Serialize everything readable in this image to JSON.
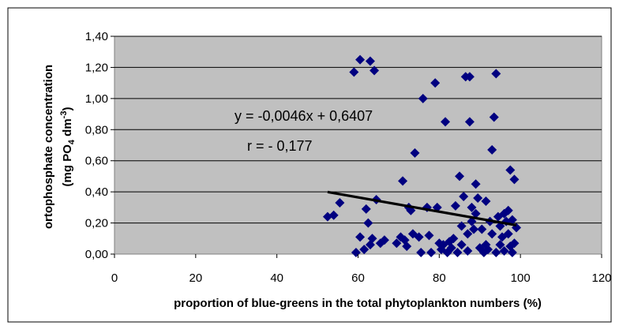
{
  "chart_data": {
    "type": "scatter",
    "xlabel": "proportion of blue-greens in the total phytoplankton numbers (%)",
    "ylabel_line1": "ortophosphate concentration",
    "ylabel_line2": {
      "prefix": "(mg PO",
      "sub": "4",
      "middle": " dm",
      "sup": "-3",
      "suffix": ")"
    },
    "xlim": [
      0,
      120
    ],
    "ylim": [
      0,
      1.4
    ],
    "x_ticks": [
      0,
      20,
      40,
      60,
      80,
      100,
      120
    ],
    "x_tick_labels": [
      "0",
      "20",
      "40",
      "60",
      "80",
      "100",
      "120"
    ],
    "y_ticks": [
      0,
      0.2,
      0.4,
      0.6,
      0.8,
      1.0,
      1.2,
      1.4
    ],
    "y_tick_labels": [
      "0,00",
      "0,20",
      "0,40",
      "0,60",
      "0,80",
      "1,00",
      "1,20",
      "1,40"
    ],
    "grid": "horizontal",
    "colors": {
      "plot_bg": "#c0c0c0",
      "marker": "#000080",
      "trendline": "#000000",
      "grid": "#000000"
    },
    "trendline": {
      "slope": -0.0046,
      "intercept": 0.6407,
      "x_range": [
        52.5,
        99
      ]
    },
    "annotations": {
      "equation": "y = -0,0046x + 0,6407",
      "r": "r = - 0,177"
    },
    "points": [
      [
        52.5,
        0.24
      ],
      [
        54,
        0.25
      ],
      [
        55.5,
        0.33
      ],
      [
        59,
        1.17
      ],
      [
        59.5,
        0.01
      ],
      [
        60.5,
        1.25
      ],
      [
        60.5,
        0.11
      ],
      [
        61.5,
        0.03
      ],
      [
        62,
        0.29
      ],
      [
        62.5,
        0.2
      ],
      [
        63,
        0.06
      ],
      [
        63,
        1.24
      ],
      [
        63.5,
        0.1
      ],
      [
        64,
        1.18
      ],
      [
        64.5,
        0.35
      ],
      [
        65.5,
        0.07
      ],
      [
        66.5,
        0.09
      ],
      [
        69.5,
        0.07
      ],
      [
        70.5,
        0.11
      ],
      [
        71,
        0.47
      ],
      [
        71.5,
        0.09
      ],
      [
        72,
        0.05
      ],
      [
        72.5,
        0.3
      ],
      [
        73,
        0.28
      ],
      [
        73.5,
        0.13
      ],
      [
        74,
        0.65
      ],
      [
        75,
        0.11
      ],
      [
        75.5,
        0.01
      ],
      [
        76,
        1.0
      ],
      [
        77,
        0.3
      ],
      [
        77.5,
        0.12
      ],
      [
        78,
        0.01
      ],
      [
        79,
        1.1
      ],
      [
        79.5,
        0.3
      ],
      [
        80,
        0.07
      ],
      [
        80.5,
        0.03
      ],
      [
        81,
        0.06
      ],
      [
        81.5,
        0.85
      ],
      [
        82,
        0.01
      ],
      [
        82.5,
        0.08
      ],
      [
        83,
        0.04
      ],
      [
        83.5,
        0.1
      ],
      [
        84,
        0.31
      ],
      [
        84.5,
        0.01
      ],
      [
        85,
        0.5
      ],
      [
        85.5,
        0.06
      ],
      [
        85.5,
        0.18
      ],
      [
        86,
        0.37
      ],
      [
        86.5,
        1.14
      ],
      [
        87,
        0.02
      ],
      [
        87,
        0.13
      ],
      [
        87.5,
        0.85
      ],
      [
        87.5,
        1.14
      ],
      [
        88,
        0.21
      ],
      [
        88,
        0.3
      ],
      [
        88.5,
        0.16
      ],
      [
        89,
        0.45
      ],
      [
        89,
        0.26
      ],
      [
        89.5,
        0.36
      ],
      [
        90,
        0.04
      ],
      [
        90.5,
        0.16
      ],
      [
        91,
        0.01
      ],
      [
        91.5,
        0.06
      ],
      [
        91.5,
        0.34
      ],
      [
        92,
        0.03
      ],
      [
        92.5,
        0.21
      ],
      [
        93,
        0.67
      ],
      [
        93,
        0.13
      ],
      [
        93.5,
        0.88
      ],
      [
        94,
        0.01
      ],
      [
        94,
        1.16
      ],
      [
        94.5,
        0.24
      ],
      [
        95,
        0.06
      ],
      [
        95,
        0.18
      ],
      [
        95.5,
        0.11
      ],
      [
        96,
        0.26
      ],
      [
        96,
        0.02
      ],
      [
        96.5,
        0.21
      ],
      [
        97,
        0.28
      ],
      [
        97,
        0.13
      ],
      [
        97.5,
        0.54
      ],
      [
        97.5,
        0.05
      ],
      [
        98,
        0.01
      ],
      [
        98,
        0.22
      ],
      [
        98.5,
        0.48
      ],
      [
        98.5,
        0.07
      ],
      [
        99,
        0.17
      ]
    ]
  }
}
